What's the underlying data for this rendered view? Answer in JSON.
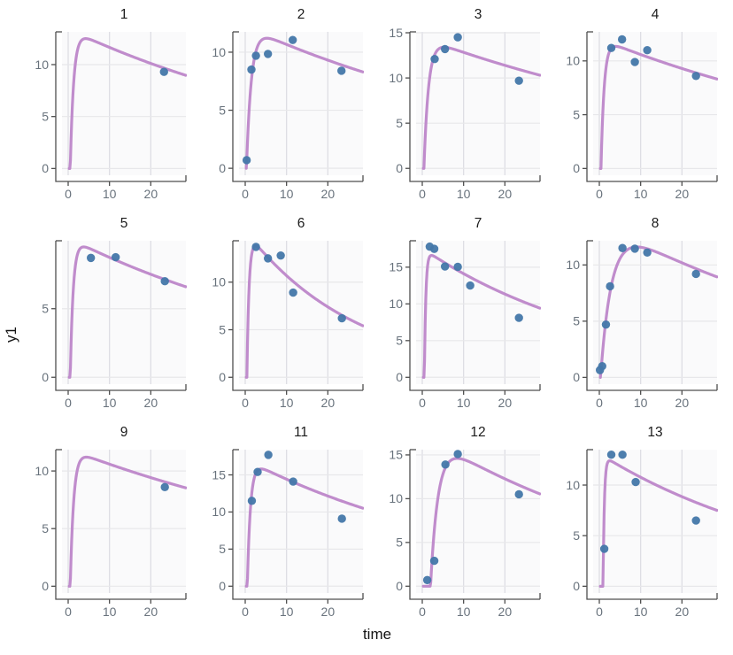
{
  "chart_data": {
    "type": "line+scatter",
    "layout": "facet-grid-3x4",
    "xlabel": "time",
    "ylabel": "y1",
    "xlim": [
      -1.5,
      28.5
    ],
    "x_ticks": [
      0,
      10,
      20
    ],
    "grid": true,
    "legend": "none",
    "style": {
      "fit_line_color": "#bd86c9",
      "point_color": "#4377a9",
      "panel_bg": "#fafafb",
      "grid_line_x": "#dedee4",
      "grid_line_y": "#e7e7ea",
      "axis_line": "#4f4f4f",
      "tick_label_color": "#68727c",
      "title_color": "#1b1b1b",
      "figure_bg": "#ffffff"
    },
    "series_semantics": {
      "line": "individual model fit",
      "points": "observed y1"
    },
    "facets": [
      {
        "label": "1",
        "ylim": [
          -0.65,
          13.15
        ],
        "y_ticks": [
          0,
          5,
          10
        ],
        "fit_curve": {
          "model": "bateman",
          "lag_time": 0.5,
          "ka": 1.2,
          "ke": 0.0142,
          "peak": 12.5
        },
        "points": [
          [
            23.2,
            9.3
          ]
        ]
      },
      {
        "label": "2",
        "ylim": [
          -0.6,
          11.75
        ],
        "y_ticks": [
          0,
          5,
          10
        ],
        "fit_curve": {
          "model": "bateman",
          "lag_time": 0.3,
          "ka": 0.85,
          "ke": 0.0136,
          "peak": 11.2
        },
        "points": [
          [
            0.35,
            0.7
          ],
          [
            1.5,
            8.5
          ],
          [
            2.6,
            9.7
          ],
          [
            5.5,
            9.85
          ],
          [
            11.5,
            11.05
          ],
          [
            23.3,
            8.4
          ]
        ]
      },
      {
        "label": "3",
        "ylim": [
          -0.76,
          15.1
        ],
        "y_ticks": [
          0,
          5,
          10,
          15
        ],
        "fit_curve": {
          "model": "bateman",
          "lag_time": 0.4,
          "ka": 0.9,
          "ke": 0.0119,
          "peak": 13.4
        },
        "points": [
          [
            3.0,
            12.1
          ],
          [
            5.5,
            13.2
          ],
          [
            8.6,
            14.5
          ],
          [
            23.4,
            9.7
          ]
        ]
      },
      {
        "label": "4",
        "ylim": [
          -0.63,
          12.7
        ],
        "y_ticks": [
          0,
          5,
          10
        ],
        "fit_curve": {
          "model": "bateman",
          "lag_time": 0.4,
          "ka": 1.3,
          "ke": 0.0131,
          "peak": 11.35
        },
        "points": [
          [
            2.9,
            11.2
          ],
          [
            5.5,
            12.0
          ],
          [
            8.6,
            9.9
          ],
          [
            11.6,
            11.0
          ],
          [
            23.4,
            8.6
          ]
        ]
      },
      {
        "label": "5",
        "ylim": [
          -0.5,
          9.95
        ],
        "y_ticks": [
          0,
          5
        ],
        "fit_curve": {
          "model": "bateman",
          "lag_time": 0.5,
          "ka": 1.4,
          "ke": 0.0152,
          "peak": 9.5
        },
        "points": [
          [
            5.5,
            8.7
          ],
          [
            11.5,
            8.75
          ],
          [
            23.4,
            7.0
          ]
        ]
      },
      {
        "label": "6",
        "ylim": [
          -0.72,
          14.35
        ],
        "y_ticks": [
          0,
          5,
          10
        ],
        "fit_curve": {
          "model": "bateman",
          "lag_time": 0.4,
          "ka": 1.9,
          "ke": 0.0368,
          "peak": 13.8
        },
        "points": [
          [
            2.6,
            13.7
          ],
          [
            5.5,
            12.5
          ],
          [
            8.6,
            12.8
          ],
          [
            11.6,
            8.9
          ],
          [
            23.4,
            6.2
          ]
        ]
      },
      {
        "label": "7",
        "ylim": [
          -0.93,
          18.6
        ],
        "y_ticks": [
          0,
          5,
          10,
          15
        ],
        "fit_curve": {
          "model": "bateman",
          "lag_time": 0.5,
          "ka": 2.8,
          "ke": 0.0219,
          "peak": 16.6
        },
        "points": [
          [
            1.8,
            17.8
          ],
          [
            2.9,
            17.5
          ],
          [
            5.5,
            15.1
          ],
          [
            8.6,
            15.05
          ],
          [
            11.6,
            12.5
          ],
          [
            23.4,
            8.1
          ]
        ]
      },
      {
        "label": "8",
        "ylim": [
          -0.6,
          12.15
        ],
        "y_ticks": [
          0,
          5,
          10
        ],
        "fit_curve": {
          "model": "bateman",
          "lag_time": 0.3,
          "ka": 0.38,
          "ke": 0.0156,
          "peak": 11.6
        },
        "points": [
          [
            0.15,
            0.65
          ],
          [
            0.7,
            1.0
          ],
          [
            1.6,
            4.7
          ],
          [
            2.6,
            8.1
          ],
          [
            5.6,
            11.5
          ],
          [
            8.6,
            11.45
          ],
          [
            11.6,
            11.1
          ],
          [
            23.4,
            9.2
          ]
        ]
      },
      {
        "label": "9",
        "ylim": [
          -0.59,
          11.85
        ],
        "y_ticks": [
          0,
          5,
          10
        ],
        "fit_curve": {
          "model": "bateman",
          "lag_time": 0.5,
          "ka": 1.2,
          "ke": 0.0117,
          "peak": 11.2
        },
        "points": [
          [
            23.4,
            8.6
          ]
        ]
      },
      {
        "label": "11",
        "ylim": [
          -0.92,
          18.4
        ],
        "y_ticks": [
          0,
          5,
          10,
          15
        ],
        "fit_curve": {
          "model": "bateman",
          "lag_time": 0.5,
          "ka": 1.3,
          "ke": 0.0171,
          "peak": 15.8
        },
        "points": [
          [
            1.6,
            11.5
          ],
          [
            3.0,
            15.4
          ],
          [
            5.6,
            17.7
          ],
          [
            11.6,
            14.1
          ],
          [
            23.4,
            9.1
          ]
        ]
      },
      {
        "label": "12",
        "ylim": [
          -0.78,
          15.6
        ],
        "y_ticks": [
          0,
          5,
          10,
          15
        ],
        "fit_curve": {
          "model": "bateman",
          "lag_time": 2.0,
          "ka": 0.55,
          "ke": 0.0179,
          "peak": 14.6
        },
        "points": [
          [
            1.2,
            0.7
          ],
          [
            2.9,
            2.9
          ],
          [
            5.6,
            13.9
          ],
          [
            8.6,
            15.1
          ],
          [
            23.4,
            10.5
          ]
        ]
      },
      {
        "label": "13",
        "ylim": [
          -0.67,
          13.5
        ],
        "y_ticks": [
          0,
          5,
          10
        ],
        "fit_curve": {
          "model": "bateman",
          "lag_time": 0.9,
          "ka": 3.2,
          "ke": 0.0196,
          "peak": 12.4
        },
        "points": [
          [
            1.2,
            3.7
          ],
          [
            2.9,
            13.0
          ],
          [
            5.6,
            13.0
          ],
          [
            8.8,
            10.3
          ],
          [
            23.4,
            6.5
          ]
        ]
      }
    ]
  }
}
